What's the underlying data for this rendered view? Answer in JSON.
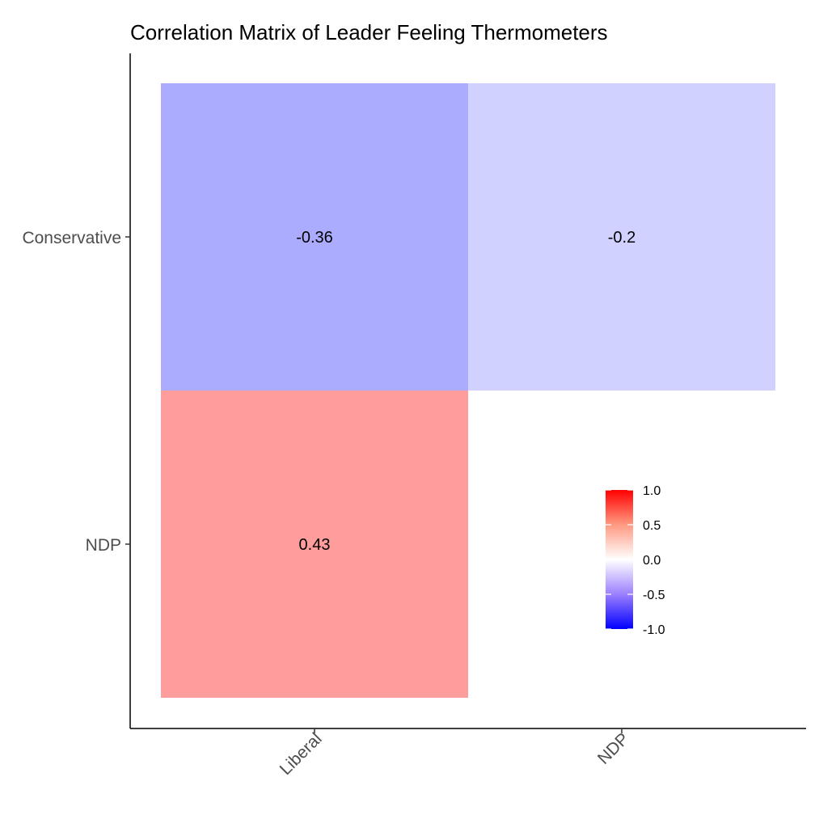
{
  "chart_data": {
    "type": "heatmap",
    "title": "Correlation Matrix of Leader Feeling Thermometers",
    "xlabel": "",
    "ylabel": "",
    "x_categories": [
      "Liberal",
      "NDP"
    ],
    "y_categories": [
      "Conservative",
      "NDP"
    ],
    "cells": [
      {
        "x": "Liberal",
        "y": "Conservative",
        "value": -0.36,
        "label": "-0.36"
      },
      {
        "x": "NDP",
        "y": "Conservative",
        "value": -0.2,
        "label": "-0.2"
      },
      {
        "x": "Liberal",
        "y": "NDP",
        "value": 0.43,
        "label": "0.43"
      }
    ],
    "color_scale": {
      "low": "#0000ff",
      "mid": "#ffffff",
      "high": "#ff0000",
      "limits": [
        -1,
        1
      ],
      "breaks": [
        1.0,
        0.5,
        0.0,
        -0.5,
        -1.0
      ],
      "break_labels": [
        "1.0",
        "0.5",
        "0.0",
        "-0.5",
        "-1.0"
      ]
    },
    "grid": false,
    "legend_position": "inside-bottom-right"
  },
  "colors": {
    "axis": "#000000",
    "tick_text": "#4d4d4d",
    "background": "#ffffff"
  }
}
